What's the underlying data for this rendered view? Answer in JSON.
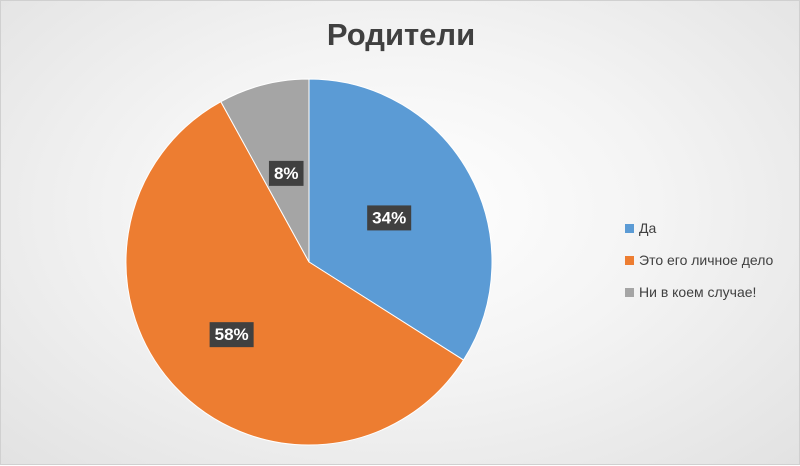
{
  "chart_data": {
    "type": "pie",
    "title": "Родители",
    "categories": [
      "Да",
      "Это его личное дело",
      "Ни в коем случае!"
    ],
    "values": [
      34,
      58,
      8
    ],
    "labels": [
      "34%",
      "58%",
      "8%"
    ],
    "colors": [
      "#5b9bd5",
      "#ed7d31",
      "#a5a5a5"
    ],
    "start_angle_deg": 0,
    "direction": "clockwise",
    "legend_position": "right"
  }
}
